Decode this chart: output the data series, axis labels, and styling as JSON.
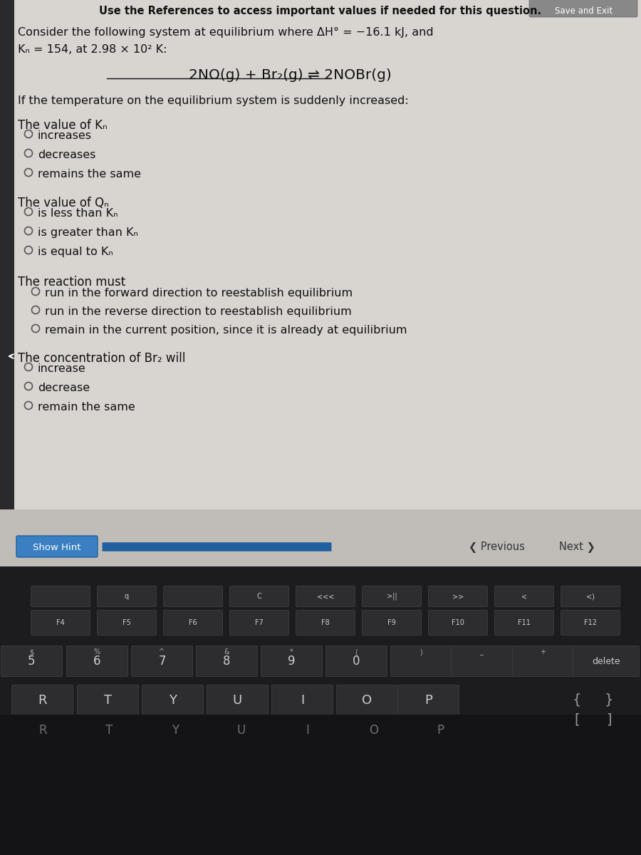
{
  "header_text": "Use the References to access important values if needed for this question.",
  "intro_line1": "Consider the following system at equilibrium where ΔH° = −16.1 kJ, and",
  "intro_line2": "Kₙ = 154, at 2.98 × 10² K:",
  "equation": "2NO(g) + Br₂(g) ⇌ 2NOBr(g)",
  "condition_text": "If the temperature on the equilibrium system is suddenly increased:",
  "section1_title": "The value of Kₙ",
  "section1_options": [
    "increases",
    "decreases",
    "remains the same"
  ],
  "section2_title": "The value of Qₙ",
  "section2_options": [
    "is less than Kₙ",
    "is greater than Kₙ",
    "is equal to Kₙ"
  ],
  "section3_title": "The reaction must",
  "section3_options": [
    "run in the forward direction to reestablish equilibrium",
    "run in the reverse direction to reestablish equilibrium",
    "remain in the current position, since it is already at equilibrium"
  ],
  "section4_title": "The concentration of Br₂ will",
  "section4_options": [
    "increase",
    "decrease",
    "remain the same"
  ],
  "btn_show_hint": "Show Hint",
  "btn_previous": "Previous",
  "btn_next": "Next",
  "btn_save_exit": "Save and Exit",
  "content_bg": "#d0cece",
  "panel_bg": "#d8d4d0",
  "keyboard_dark": "#1c1c1e",
  "left_bar_color": "#2a2a2c",
  "show_hint_color": "#3a7fc1",
  "nav_bg": "#c0bdb9",
  "key_color": "#2d2d30",
  "key_edge": "#3a3a3e",
  "fkeys": [
    "F4",
    "F5",
    "F6",
    "F7",
    "F8",
    "F9",
    "F10",
    "F11",
    "F12"
  ],
  "num_row": [
    "5",
    "6",
    "7",
    "8",
    "9",
    "0",
    "",
    "",
    ""
  ],
  "qrow": [
    "R",
    "T",
    "Y",
    "U",
    "I",
    "O",
    "P"
  ],
  "bottom_row": [
    "R",
    "T",
    "Y",
    "U",
    "I",
    "O",
    "P"
  ]
}
